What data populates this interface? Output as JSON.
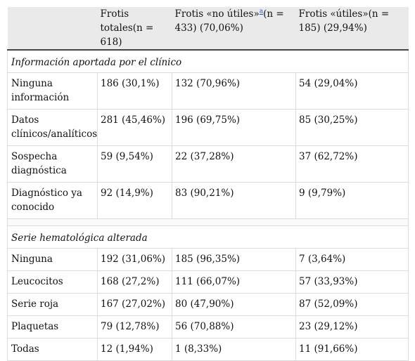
{
  "header": {
    "col0": "",
    "col1": "Frotis totales(n = 618)",
    "col2_pre": "Frotis «no útiles»",
    "col2_fn": "a",
    "col2_post": "(n = 433) (70,06%)",
    "col3": "Frotis «útiles»(n = 185) (29,94%)"
  },
  "sections": [
    {
      "title": "Información aportada por el clínico",
      "rows": [
        [
          "Ninguna información",
          "186 (30,1%)",
          "132 (70,96%)",
          "54 (29,04%)"
        ],
        [
          "Datos clínicos/analíticos",
          "281 (45,46%)",
          "196 (69,75%)",
          "85 (30,25%)"
        ],
        [
          "Sospecha diagnóstica",
          "59 (9,54%)",
          "22 (37,28%)",
          "37 (62,72%)"
        ],
        [
          "Diagnóstico ya conocido",
          "92 (14,9%)",
          "83 (90,21%)",
          "9 (9,79%)"
        ]
      ]
    },
    {
      "title": "Serie hematológica alterada",
      "rows": [
        [
          "Ninguna",
          "192 (31,06%)",
          "185 (96,35%)",
          "7 (3,64%)"
        ],
        [
          "Leucocitos",
          "168 (27,2%)",
          "111 (66,07%)",
          "57 (33,93%)"
        ],
        [
          "Serie roja",
          "167 (27,02%)",
          "80 (47,90%)",
          "87 (52,09%)"
        ],
        [
          "Plaquetas",
          "79 (12,78%)",
          "56 (70,88%)",
          "23 (29,12%)"
        ],
        [
          "Todas",
          "12 (1,94%)",
          "1 (8,33%)",
          "11 (91,66%)"
        ]
      ]
    }
  ]
}
